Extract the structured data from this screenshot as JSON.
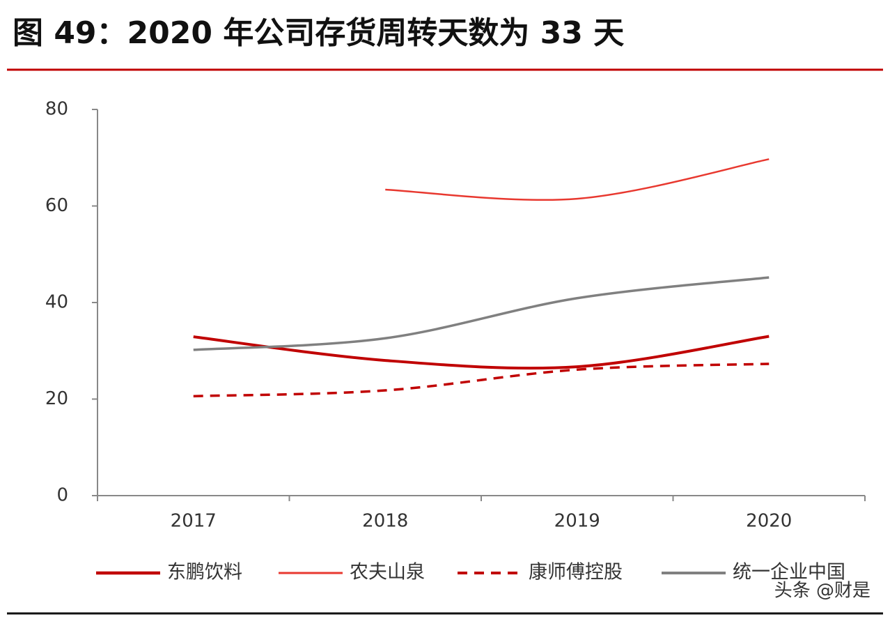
{
  "chart_data": {
    "type": "line",
    "title": "图 49：2020 年公司存货周转天数为 33 天",
    "categories": [
      "2017",
      "2018",
      "2019",
      "2020"
    ],
    "series": [
      {
        "name": "东鹏饮料",
        "color": "#c00000",
        "style": "solid",
        "values": [
          32.9,
          28.0,
          26.7,
          33
        ]
      },
      {
        "name": "农夫山泉",
        "color": "#e8382f",
        "style": "solid",
        "values": [
          null,
          63.4,
          61.5,
          69.7
        ]
      },
      {
        "name": "康师傅控股",
        "color": "#c00000",
        "style": "dashed",
        "values": [
          20.6,
          21.8,
          26.1,
          27.3
        ]
      },
      {
        "name": "统一企业中国",
        "color": "#808080",
        "style": "solid",
        "values": [
          30.2,
          32.6,
          40.9,
          45.2
        ]
      }
    ],
    "ylim": [
      0,
      80
    ],
    "yticks": [
      0,
      20,
      40,
      60,
      80
    ],
    "grid": false,
    "legend": "bottom",
    "watermark": "头条 @财是"
  }
}
